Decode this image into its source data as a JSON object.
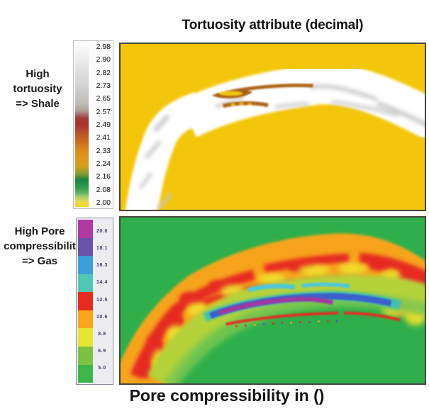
{
  "figure": {
    "top_section": {
      "title": "Tortuosity attribute (decimal)",
      "side_label_lines": [
        "High",
        "tortuosity",
        "=> Shale"
      ],
      "colorbar": {
        "tick_labels": [
          "2.98",
          "2.90",
          "2.82",
          "2.73",
          "2.65",
          "2.57",
          "2.49",
          "2.41",
          "2.33",
          "2.24",
          "2.16",
          "2.08",
          "2.00"
        ],
        "gradient_stops_bottom_to_top": [
          {
            "p": 0,
            "c": "#F5D316"
          },
          {
            "p": 3,
            "c": "#EDD94C"
          },
          {
            "p": 6,
            "c": "#A9D06A"
          },
          {
            "p": 8.5,
            "c": "#5BB562"
          },
          {
            "p": 12,
            "c": "#2E9B4D"
          },
          {
            "p": 16.5,
            "c": "#1B8340"
          },
          {
            "p": 20,
            "c": "#7E9C34"
          },
          {
            "p": 24.5,
            "c": "#CFA01C"
          },
          {
            "p": 30,
            "c": "#DD941E"
          },
          {
            "p": 34,
            "c": "#DC8A1F"
          },
          {
            "p": 42,
            "c": "#C2621F"
          },
          {
            "p": 47,
            "c": "#B24430"
          },
          {
            "p": 50,
            "c": "#AA2F2B"
          },
          {
            "p": 54,
            "c": "#A03C38"
          },
          {
            "p": 58.5,
            "c": "#ABA096"
          },
          {
            "p": 63,
            "c": "#BFBCB8"
          },
          {
            "p": 67,
            "c": "#C7C5C3"
          },
          {
            "p": 75,
            "c": "#D4D4D4"
          },
          {
            "p": 83,
            "c": "#E1E1E1"
          },
          {
            "p": 92,
            "c": "#F0F0F0"
          },
          {
            "p": 100,
            "c": "#FEFEFE"
          }
        ]
      }
    },
    "bottom_section": {
      "caption": "Pore compressibility in ()",
      "side_label_lines": [
        "High Pore",
        "compressibilit",
        "=> Gas"
      ],
      "colorbar": {
        "tick_labels": [
          "20.0",
          "18.1",
          "16.3",
          "14.4",
          "12.5",
          "10.6",
          "8.8",
          "6.9",
          "5.0"
        ],
        "block_colors_top_to_bottom": [
          "#B13AA1",
          "#6854A8",
          "#3E9ED9",
          "#52C8B4",
          "#E62B21",
          "#F9A61D",
          "#E8E436",
          "#7CC242",
          "#3FB44A"
        ]
      }
    }
  },
  "colors": {
    "top_panel_bg": "#F3C60B",
    "top_band": "#FFFFFF",
    "top_gray_wisp": "#C6C6C6",
    "top_brown_streak": "#AD6316",
    "bottom_panel_bg": "#2FAF4B",
    "band_orange": "#F7A41C",
    "band_red": "#E62B21",
    "band_yellow": "#F0E12F",
    "band_yellow_green": "#B5D23A",
    "band_light_green": "#7CC84F",
    "lens_teal": "#3FC0B4",
    "lens_blue": "#3A5ECC",
    "lens_purple": "#A039A2",
    "cyan_streak": "#4EC6DC",
    "panel_border": "#45453C"
  },
  "chart_data": [
    {
      "type": "heatmap",
      "title": "Tortuosity attribute (decimal)",
      "annotation": "High tortuosity => Shale",
      "value_range": [
        2.0,
        2.98
      ],
      "colorbar_ticks": [
        2.98,
        2.9,
        2.82,
        2.73,
        2.65,
        2.57,
        2.49,
        2.41,
        2.33,
        2.24,
        2.16,
        2.08,
        2.0
      ],
      "colorbar_colors_bottom_to_top": [
        "yellow",
        "light green",
        "dark green",
        "gold",
        "orange",
        "brown-orange",
        "dark red",
        "gray",
        "white"
      ],
      "legend_position": "left",
      "features": [
        {
          "region": "background",
          "value": 2.0,
          "color": "yellow"
        },
        {
          "region": "arched band from lower-left to right edge",
          "value": 2.9,
          "color": "white",
          "meaning": "high tortuosity shale"
        },
        {
          "region": "streaks inside band left-center",
          "value": 2.35,
          "color": "brown-orange"
        },
        {
          "region": "faint streaks along band",
          "value": 2.6,
          "color": "gray"
        }
      ]
    },
    {
      "type": "heatmap",
      "title": "Pore compressibility in ()",
      "annotation": "High Pore compressibilit => Gas",
      "value_range": [
        5.0,
        20.0
      ],
      "colorbar_ticks": [
        20.0,
        18.1,
        16.3,
        14.4,
        12.5,
        10.6,
        8.8,
        6.9,
        5.0
      ],
      "colorbar_colors_top_to_bottom": [
        "magenta",
        "violet",
        "blue",
        "teal",
        "red",
        "orange",
        "yellow",
        "yellow-green",
        "green"
      ],
      "legend_position": "left",
      "features": [
        {
          "region": "background",
          "value": 5.0,
          "color": "green"
        },
        {
          "region": "arched band from lower-left to right edge",
          "value": 11.5,
          "color": "mottled red/orange/yellow"
        },
        {
          "region": "elongated central lens",
          "value": 19.0,
          "color": "purple core with blue/teal rim",
          "meaning": "high pore compressibility gas"
        },
        {
          "region": "small streaks above lens",
          "value": 15.0,
          "color": "cyan"
        },
        {
          "region": "fringe below band",
          "value": 7.0,
          "color": "yellow-green"
        }
      ]
    }
  ]
}
